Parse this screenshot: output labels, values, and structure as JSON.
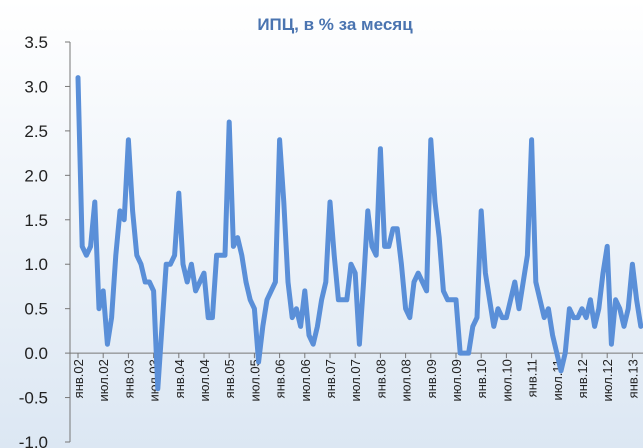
{
  "chart_data": {
    "type": "line",
    "title": "ИПЦ, в % за месяц",
    "categories": [
      "янв.02",
      null,
      null,
      null,
      null,
      null,
      "июл.02",
      null,
      null,
      null,
      null,
      null,
      "янв.03",
      null,
      null,
      null,
      null,
      null,
      "июл.03",
      null,
      null,
      null,
      null,
      null,
      "янв.04",
      null,
      null,
      null,
      null,
      null,
      "июл.04",
      null,
      null,
      null,
      null,
      null,
      "янв.05",
      null,
      null,
      null,
      null,
      null,
      "июл.05",
      null,
      null,
      null,
      null,
      null,
      "янв.06",
      null,
      null,
      null,
      null,
      null,
      "июл.06",
      null,
      null,
      null,
      null,
      null,
      "янв.07",
      null,
      null,
      null,
      null,
      null,
      "июл.07",
      null,
      null,
      null,
      null,
      null,
      "янв.08",
      null,
      null,
      null,
      null,
      null,
      "июл.08",
      null,
      null,
      null,
      null,
      null,
      "янв.09",
      null,
      null,
      null,
      null,
      null,
      "июл.09",
      null,
      null,
      null,
      null,
      null,
      "янв.10",
      null,
      null,
      null,
      null,
      null,
      "июл.10",
      null,
      null,
      null,
      null,
      null,
      "янв.11",
      null,
      null,
      null,
      null,
      null,
      "июл.11",
      null,
      null,
      null,
      null,
      null,
      "янв.12",
      null,
      null,
      null,
      null,
      null,
      "июл.12",
      null,
      null,
      null,
      null,
      null,
      "янв.13",
      null,
      null
    ],
    "series": [
      {
        "name": "ИПЦ",
        "color": "#5a8fd8",
        "values": [
          3.1,
          1.2,
          1.1,
          1.2,
          1.7,
          0.5,
          0.7,
          0.1,
          0.4,
          1.1,
          1.6,
          1.5,
          2.4,
          1.6,
          1.1,
          1.0,
          0.8,
          0.8,
          0.7,
          -0.4,
          0.3,
          1.0,
          1.0,
          1.1,
          1.8,
          1.0,
          0.8,
          1.0,
          0.7,
          0.8,
          0.9,
          0.4,
          0.4,
          1.1,
          1.1,
          1.1,
          2.6,
          1.2,
          1.3,
          1.1,
          0.8,
          0.6,
          0.5,
          -0.1,
          0.3,
          0.6,
          0.7,
          0.8,
          2.4,
          1.7,
          0.8,
          0.4,
          0.5,
          0.3,
          0.7,
          0.2,
          0.1,
          0.3,
          0.6,
          0.8,
          1.7,
          1.1,
          0.6,
          0.6,
          0.6,
          1.0,
          0.9,
          0.1,
          0.8,
          1.6,
          1.2,
          1.1,
          2.3,
          1.2,
          1.2,
          1.4,
          1.4,
          1.0,
          0.5,
          0.4,
          0.8,
          0.9,
          0.8,
          0.7,
          2.4,
          1.7,
          1.3,
          0.7,
          0.6,
          0.6,
          0.6,
          0.0,
          0.0,
          0.0,
          0.3,
          0.4,
          1.6,
          0.9,
          0.6,
          0.3,
          0.5,
          0.4,
          0.4,
          0.6,
          0.8,
          0.5,
          0.8,
          1.1,
          2.4,
          0.8,
          0.6,
          0.4,
          0.5,
          0.2,
          0.0,
          -0.2,
          0.0,
          0.5,
          0.4,
          0.4,
          0.5,
          0.4,
          0.6,
          0.3,
          0.5,
          0.9,
          1.2,
          0.1,
          0.6,
          0.5,
          0.3,
          0.5,
          1.0,
          0.6,
          0.3
        ]
      }
    ],
    "ylim": [
      -1,
      3.5
    ],
    "yticks": [
      {
        "value": -1,
        "label": "-1.0"
      },
      {
        "value": -0.5,
        "label": "-0.5"
      },
      {
        "value": 0,
        "label": "0.0"
      },
      {
        "value": 0.5,
        "label": "0.5"
      },
      {
        "value": 1,
        "label": "1.0"
      },
      {
        "value": 1.5,
        "label": "1.5"
      },
      {
        "value": 2,
        "label": "2.0"
      },
      {
        "value": 2.5,
        "label": "2.5"
      },
      {
        "value": 3,
        "label": "3.0"
      },
      {
        "value": 3.5,
        "label": "3.5"
      }
    ],
    "grid": false
  }
}
